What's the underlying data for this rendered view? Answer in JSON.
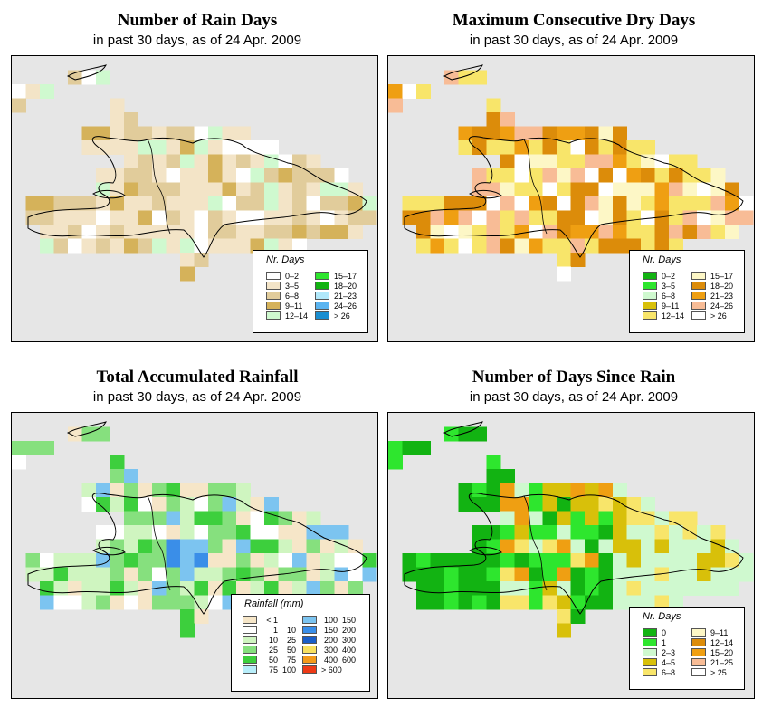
{
  "panels": [
    {
      "title": "Number of Rain Days",
      "subtitle": "in past 30 days, as of  24 Apr. 2009",
      "legend": {
        "title": "Nr. Days",
        "items": [
          {
            "label": "0–2",
            "color": "#ffffff"
          },
          {
            "label": "3–5",
            "color": "#f3e4c7"
          },
          {
            "label": "6–8",
            "color": "#e1cc9b"
          },
          {
            "label": "9–11",
            "color": "#d5b25a"
          },
          {
            "label": "12–14",
            "color": "#cff9cf"
          },
          {
            "label": "15–17",
            "color": "#2ee62e"
          },
          {
            "label": "18–20",
            "color": "#12b312"
          },
          {
            "label": "21–23",
            "color": "#b0e8fa"
          },
          {
            "label": "24–26",
            "color": "#5ab4f0"
          },
          {
            "label": "> 26",
            "color": "#1a8ed0"
          }
        ]
      }
    },
    {
      "title": "Maximum Consecutive Dry Days",
      "subtitle": "in past 30 days, as of  24 Apr. 2009",
      "legend": {
        "title": "Nr. Days",
        "items": [
          {
            "label": "0–2",
            "color": "#12b312"
          },
          {
            "label": "3–5",
            "color": "#2ee62e"
          },
          {
            "label": "6–8",
            "color": "#cff9cf"
          },
          {
            "label": "9–11",
            "color": "#d8c00a"
          },
          {
            "label": "12–14",
            "color": "#f8e56a"
          },
          {
            "label": "15–17",
            "color": "#fdf7c6"
          },
          {
            "label": "18–20",
            "color": "#dc8c0a"
          },
          {
            "label": "21–23",
            "color": "#ef9f12"
          },
          {
            "label": "24–26",
            "color": "#f8bc96"
          },
          {
            "label": "> 26",
            "color": "#ffffff"
          }
        ]
      }
    },
    {
      "title": "Total Accumulated Rainfall",
      "subtitle": "in past 30 days, as of  24 Apr. 2009",
      "legend": {
        "title": "Rainfall (mm)",
        "items": [
          {
            "a": "< 1",
            "b": "",
            "color": "#f6e6c8"
          },
          {
            "a": "1",
            "b": "10",
            "color": "#ffffff"
          },
          {
            "a": "10",
            "b": "25",
            "color": "#cff5c0"
          },
          {
            "a": "25",
            "b": "50",
            "color": "#86e07e"
          },
          {
            "a": "50",
            "b": "75",
            "color": "#3dcf3d"
          },
          {
            "a": "75",
            "b": "100",
            "color": "#b8eefa"
          },
          {
            "a": "100",
            "b": "150",
            "color": "#7cc4f0"
          },
          {
            "a": "150",
            "b": "200",
            "color": "#3a8ee8"
          },
          {
            "a": "200",
            "b": "300",
            "color": "#1a5ec8"
          },
          {
            "a": "300",
            "b": "400",
            "color": "#f8e060"
          },
          {
            "a": "400",
            "b": "600",
            "color": "#f49a1a"
          },
          {
            "a": "> 600",
            "b": "",
            "color": "#ee3a16"
          }
        ]
      }
    },
    {
      "title": "Number of Days Since Rain",
      "subtitle": "in past 30 days, as of  24 Apr. 2009",
      "legend": {
        "title": "Nr. Days",
        "items": [
          {
            "label": "0",
            "color": "#12b312"
          },
          {
            "label": "1",
            "color": "#2ee62e"
          },
          {
            "label": "2–3",
            "color": "#cff9cf"
          },
          {
            "label": "4–5",
            "color": "#d8c00a"
          },
          {
            "label": "6–8",
            "color": "#f8e56a"
          },
          {
            "label": "9–11",
            "color": "#fdf7c6"
          },
          {
            "label": "12–14",
            "color": "#dc8c0a"
          },
          {
            "label": "15–20",
            "color": "#ef9f12"
          },
          {
            "label": "21–25",
            "color": "#f8bc96"
          },
          {
            "label": "> 25",
            "color": "#ffffff"
          }
        ]
      }
    }
  ]
}
